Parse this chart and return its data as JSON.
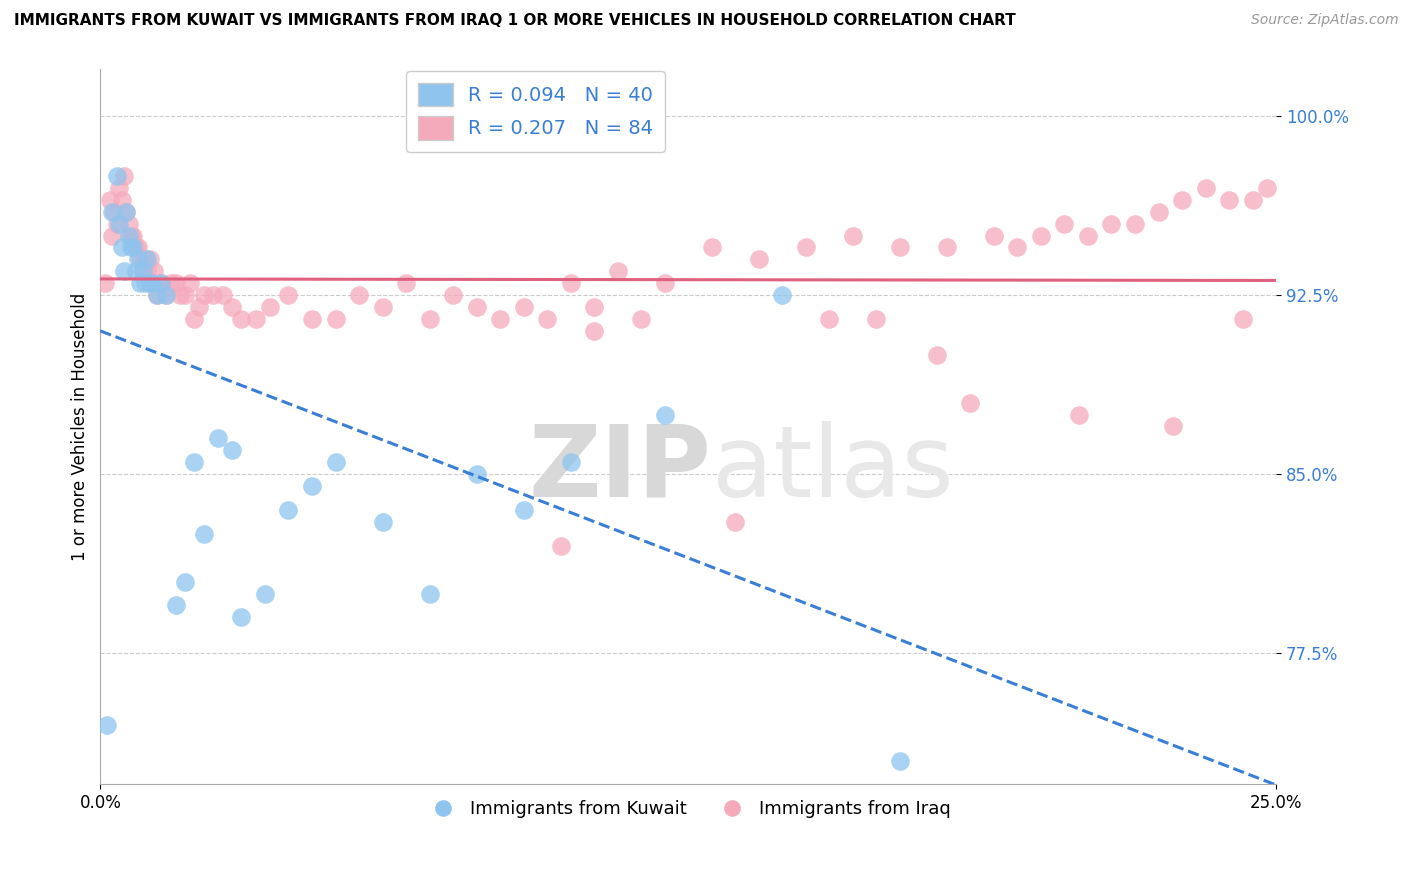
{
  "title": "IMMIGRANTS FROM KUWAIT VS IMMIGRANTS FROM IRAQ 1 OR MORE VEHICLES IN HOUSEHOLD CORRELATION CHART",
  "source": "Source: ZipAtlas.com",
  "ylabel": "1 or more Vehicles in Household",
  "kuwait_R": 0.094,
  "kuwait_N": 40,
  "iraq_R": 0.207,
  "iraq_N": 84,
  "kuwait_color": "#8ec4ee",
  "iraq_color": "#f5aabb",
  "kuwait_line_color": "#3a7fd5",
  "iraq_line_color": "#e06080",
  "watermark_zip": "ZIP",
  "watermark_atlas": "atlas",
  "legend_label_kuwait": "Immigrants from Kuwait",
  "legend_label_iraq": "Immigrants from Iraq",
  "xlim": [
    0.0,
    25.0
  ],
  "ylim": [
    72.0,
    102.0
  ],
  "ytick_positions": [
    77.5,
    85.0,
    92.5,
    100.0
  ],
  "ytick_labels": [
    "77.5%",
    "85.0%",
    "92.5%",
    "100.0%"
  ],
  "kuwait_x": [
    0.15,
    0.25,
    0.35,
    0.4,
    0.45,
    0.5,
    0.55,
    0.6,
    0.65,
    0.7,
    0.75,
    0.8,
    0.85,
    0.9,
    0.95,
    1.0,
    1.05,
    1.1,
    1.2,
    1.3,
    1.4,
    1.6,
    1.8,
    2.0,
    2.2,
    2.5,
    2.8,
    3.0,
    3.5,
    4.0,
    4.5,
    5.0,
    6.0,
    7.0,
    8.0,
    9.0,
    10.0,
    12.0,
    14.5,
    17.0
  ],
  "kuwait_y": [
    74.5,
    96.0,
    97.5,
    95.5,
    94.5,
    93.5,
    96.0,
    95.0,
    94.5,
    94.5,
    93.5,
    94.0,
    93.0,
    93.5,
    93.0,
    94.0,
    93.0,
    93.0,
    92.5,
    93.0,
    92.5,
    79.5,
    80.5,
    85.5,
    82.5,
    86.5,
    86.0,
    79.0,
    80.0,
    83.5,
    84.5,
    85.5,
    83.0,
    80.0,
    85.0,
    83.5,
    85.5,
    87.5,
    92.5,
    73.0
  ],
  "iraq_x": [
    0.1,
    0.2,
    0.25,
    0.3,
    0.35,
    0.4,
    0.45,
    0.5,
    0.55,
    0.6,
    0.65,
    0.7,
    0.75,
    0.8,
    0.85,
    0.9,
    0.95,
    1.0,
    1.05,
    1.1,
    1.15,
    1.2,
    1.3,
    1.4,
    1.5,
    1.6,
    1.7,
    1.8,
    1.9,
    2.0,
    2.1,
    2.2,
    2.4,
    2.6,
    2.8,
    3.0,
    3.3,
    3.6,
    4.0,
    4.5,
    5.0,
    5.5,
    6.0,
    6.5,
    7.0,
    7.5,
    8.0,
    8.5,
    9.0,
    9.5,
    10.0,
    10.5,
    11.0,
    11.5,
    12.0,
    13.0,
    14.0,
    15.0,
    15.5,
    16.0,
    17.0,
    18.0,
    18.5,
    19.0,
    19.5,
    20.0,
    20.5,
    21.0,
    21.5,
    22.0,
    22.5,
    23.0,
    23.5,
    24.0,
    24.5,
    24.8,
    9.8,
    10.5,
    13.5,
    16.5,
    17.8,
    20.8,
    22.8,
    24.3
  ],
  "iraq_y": [
    93.0,
    96.5,
    95.0,
    96.0,
    95.5,
    97.0,
    96.5,
    97.5,
    96.0,
    95.5,
    95.0,
    95.0,
    94.5,
    94.5,
    94.0,
    93.5,
    94.0,
    93.5,
    94.0,
    93.0,
    93.5,
    92.5,
    93.0,
    92.5,
    93.0,
    93.0,
    92.5,
    92.5,
    93.0,
    91.5,
    92.0,
    92.5,
    92.5,
    92.5,
    92.0,
    91.5,
    91.5,
    92.0,
    92.5,
    91.5,
    91.5,
    92.5,
    92.0,
    93.0,
    91.5,
    92.5,
    92.0,
    91.5,
    92.0,
    91.5,
    93.0,
    92.0,
    93.5,
    91.5,
    93.0,
    94.5,
    94.0,
    94.5,
    91.5,
    95.0,
    94.5,
    94.5,
    88.0,
    95.0,
    94.5,
    95.0,
    95.5,
    95.0,
    95.5,
    95.5,
    96.0,
    96.5,
    97.0,
    96.5,
    96.5,
    97.0,
    82.0,
    91.0,
    83.0,
    91.5,
    90.0,
    87.5,
    87.0,
    91.5
  ]
}
